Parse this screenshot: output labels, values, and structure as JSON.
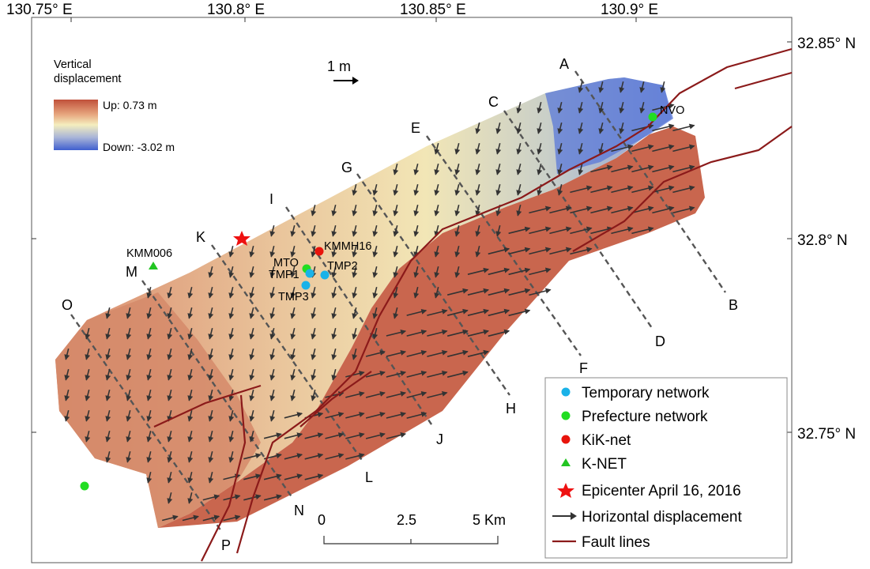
{
  "map": {
    "lon_ticks": [
      "130.75° E",
      "130.8° E",
      "130.85° E",
      "130.9° E"
    ],
    "lat_ticks": [
      "32.85° N",
      "32.8° N",
      "32.75° N"
    ],
    "colorbar": {
      "title_line1": "Vertical",
      "title_line2": "displacement",
      "up_label": "Up: 0.73 m",
      "down_label": "Down: -3.02 m",
      "up_value_m": 0.73,
      "down_value_m": -3.02,
      "colors": {
        "up": "#c0503a",
        "mid": "#f4eebe",
        "down": "#3f5fcf"
      }
    },
    "arrow_scale_label": "1 m",
    "profile_labels": [
      "A",
      "B",
      "C",
      "D",
      "E",
      "F",
      "G",
      "H",
      "I",
      "J",
      "K",
      "L",
      "M",
      "N",
      "O",
      "P"
    ],
    "station_labels": {
      "kmm006": "KMM006",
      "kmmh16": "KMMH16",
      "mto": "MTO",
      "tmp1": "TMP1",
      "tmp2": "TMP2",
      "tmp3": "TMP3",
      "nvo": "NVO"
    },
    "scalebar": {
      "tick0": "0",
      "tick1": "2.5",
      "tick2": "5 Km"
    },
    "legend": [
      {
        "label": "Temporary network",
        "color": "#1ab2e8",
        "symbol": "circle"
      },
      {
        "label": "Prefecture network",
        "color": "#22dd22",
        "symbol": "circle"
      },
      {
        "label": "KiK-net",
        "color": "#e8140c",
        "symbol": "circle"
      },
      {
        "label": "K-NET",
        "color": "#22c522",
        "symbol": "triangle"
      },
      {
        "label": "Epicenter April 16, 2016",
        "color": "#ee1111",
        "symbol": "star"
      },
      {
        "label": "Horizontal displacement",
        "color": "#333333",
        "symbol": "arrow"
      },
      {
        "label": "Fault lines",
        "color": "#8b1a1a",
        "symbol": "line"
      }
    ],
    "fault_color": "#8b1a1a"
  }
}
